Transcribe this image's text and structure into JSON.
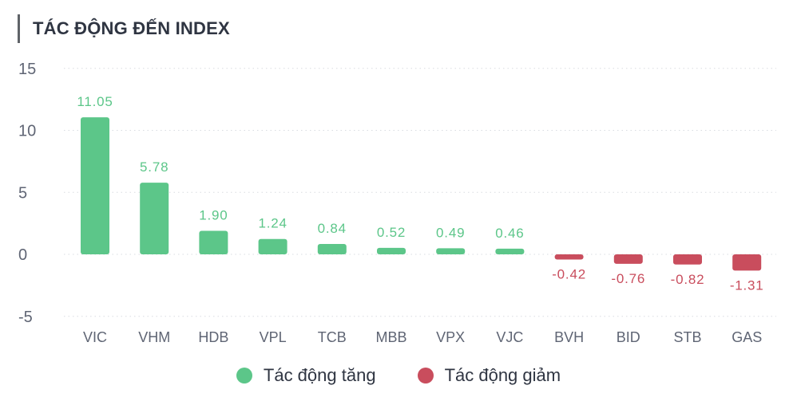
{
  "header": {
    "title": "TÁC ĐỘNG ĐẾN INDEX"
  },
  "chart_data": {
    "type": "bar",
    "categories": [
      "VIC",
      "VHM",
      "HDB",
      "VPL",
      "TCB",
      "MBB",
      "VPX",
      "VJC",
      "BVH",
      "BID",
      "STB",
      "GAS"
    ],
    "values": [
      11.05,
      5.78,
      1.9,
      1.24,
      0.84,
      0.52,
      0.49,
      0.46,
      -0.42,
      -0.76,
      -0.82,
      -1.31
    ],
    "labels": [
      "11.05",
      "5.78",
      "1.90",
      "1.24",
      "0.84",
      "0.52",
      "0.49",
      "0.46",
      "-0.42",
      "-0.76",
      "-0.82",
      "-1.31"
    ],
    "y_ticks": [
      15,
      10,
      5,
      0,
      -5
    ],
    "y_tick_labels": [
      "15",
      "10",
      "5",
      "0",
      "-5"
    ],
    "ylim": [
      -5,
      15
    ],
    "grid": true,
    "legend_position": "bottom",
    "colors": {
      "positive": "#5cc689",
      "negative": "#c94d5d",
      "axis_text": "#5f6574",
      "grid": "#d9dce1"
    }
  },
  "legend": {
    "items": [
      {
        "label": "Tác động tăng",
        "color": "#5cc689"
      },
      {
        "label": "Tác động giảm",
        "color": "#c94d5d"
      }
    ]
  }
}
